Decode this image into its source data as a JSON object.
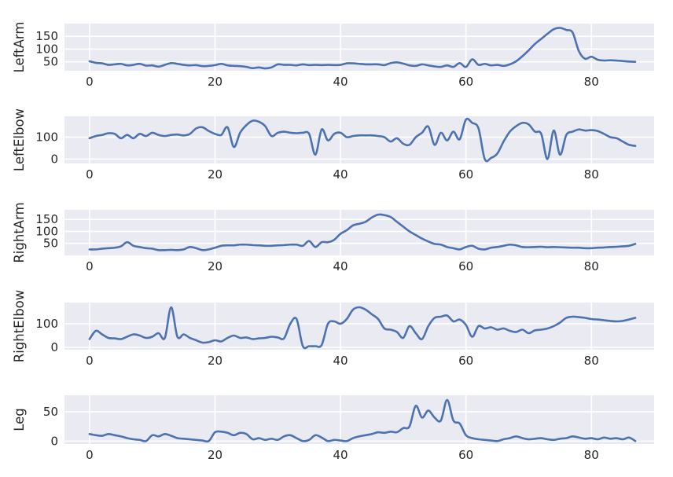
{
  "chart_data": [
    {
      "type": "line",
      "ylabel": "LeftArm",
      "xlim": [
        -4,
        90
      ],
      "ylim": [
        15,
        200
      ],
      "xticks": [
        0,
        20,
        40,
        60,
        80
      ],
      "yticks": [
        50,
        100,
        150
      ],
      "x": [
        0,
        1,
        2,
        3,
        4,
        5,
        6,
        7,
        8,
        9,
        10,
        11,
        12,
        13,
        14,
        15,
        16,
        17,
        18,
        19,
        20,
        21,
        22,
        23,
        24,
        25,
        26,
        27,
        28,
        29,
        30,
        31,
        32,
        33,
        34,
        35,
        36,
        37,
        38,
        39,
        40,
        41,
        42,
        43,
        44,
        45,
        46,
        47,
        48,
        49,
        50,
        51,
        52,
        53,
        54,
        55,
        56,
        57,
        58,
        59,
        60,
        61,
        62,
        63,
        64,
        65,
        66,
        67,
        68,
        69,
        70,
        71,
        72,
        73,
        74,
        75,
        76,
        77,
        78,
        79,
        80,
        81,
        82,
        83,
        84,
        85,
        86,
        87
      ],
      "y": [
        52,
        46,
        44,
        38,
        40,
        42,
        36,
        38,
        42,
        35,
        36,
        31,
        38,
        45,
        42,
        38,
        36,
        37,
        33,
        34,
        37,
        42,
        36,
        34,
        33,
        30,
        25,
        28,
        24,
        28,
        40,
        38,
        38,
        36,
        40,
        37,
        38,
        37,
        38,
        37,
        38,
        44,
        44,
        42,
        40,
        40,
        40,
        37,
        45,
        48,
        43,
        36,
        34,
        40,
        36,
        32,
        30,
        36,
        30,
        45,
        30,
        60,
        38,
        42,
        36,
        38,
        34,
        40,
        52,
        72,
        95,
        120,
        140,
        160,
        178,
        183,
        175,
        165,
        92,
        62,
        70,
        58,
        55,
        56,
        55,
        53,
        51,
        50
      ]
    },
    {
      "type": "line",
      "ylabel": "LeftElbow",
      "xlim": [
        -4,
        90
      ],
      "ylim": [
        -20,
        195
      ],
      "xticks": [
        0,
        20,
        40,
        60,
        80
      ],
      "yticks": [
        0,
        100
      ],
      "x": [
        0,
        1,
        2,
        3,
        4,
        5,
        6,
        7,
        8,
        9,
        10,
        11,
        12,
        13,
        14,
        15,
        16,
        17,
        18,
        19,
        20,
        21,
        22,
        23,
        24,
        25,
        26,
        27,
        28,
        29,
        30,
        31,
        32,
        33,
        34,
        35,
        36,
        37,
        38,
        39,
        40,
        41,
        42,
        43,
        44,
        45,
        46,
        47,
        48,
        49,
        50,
        51,
        52,
        53,
        54,
        55,
        56,
        57,
        58,
        59,
        60,
        61,
        62,
        63,
        64,
        65,
        66,
        67,
        68,
        69,
        70,
        71,
        72,
        73,
        74,
        75,
        76,
        77,
        78,
        79,
        80,
        81,
        82,
        83,
        84,
        85,
        86,
        87
      ],
      "y": [
        95,
        105,
        110,
        118,
        115,
        95,
        110,
        95,
        115,
        105,
        120,
        110,
        105,
        110,
        112,
        108,
        115,
        140,
        145,
        128,
        115,
        110,
        145,
        55,
        120,
        155,
        175,
        170,
        150,
        105,
        120,
        125,
        120,
        118,
        120,
        115,
        20,
        135,
        85,
        115,
        120,
        100,
        105,
        108,
        108,
        108,
        105,
        100,
        80,
        95,
        70,
        65,
        100,
        120,
        148,
        65,
        120,
        85,
        125,
        90,
        180,
        165,
        140,
        0,
        5,
        25,
        80,
        125,
        150,
        165,
        158,
        125,
        115,
        0,
        130,
        20,
        110,
        125,
        135,
        130,
        132,
        128,
        115,
        100,
        95,
        80,
        65,
        60
      ]
    },
    {
      "type": "line",
      "ylabel": "RightArm",
      "xlim": [
        -4,
        90
      ],
      "ylim": [
        0,
        190
      ],
      "xticks": [
        0,
        20,
        40,
        60,
        80
      ],
      "yticks": [
        50,
        100,
        150
      ],
      "x": [
        0,
        1,
        2,
        3,
        4,
        5,
        6,
        7,
        8,
        9,
        10,
        11,
        12,
        13,
        14,
        15,
        16,
        17,
        18,
        19,
        20,
        21,
        22,
        23,
        24,
        25,
        26,
        27,
        28,
        29,
        30,
        31,
        32,
        33,
        34,
        35,
        36,
        37,
        38,
        39,
        40,
        41,
        42,
        43,
        44,
        45,
        46,
        47,
        48,
        49,
        50,
        51,
        52,
        53,
        54,
        55,
        56,
        57,
        58,
        59,
        60,
        61,
        62,
        63,
        64,
        65,
        66,
        67,
        68,
        69,
        70,
        71,
        72,
        73,
        74,
        75,
        76,
        77,
        78,
        79,
        80,
        81,
        82,
        83,
        84,
        85,
        86,
        87
      ],
      "y": [
        25,
        25,
        28,
        30,
        32,
        38,
        55,
        40,
        35,
        30,
        28,
        22,
        22,
        23,
        22,
        25,
        35,
        30,
        22,
        25,
        32,
        40,
        42,
        42,
        45,
        45,
        43,
        42,
        40,
        40,
        42,
        43,
        45,
        45,
        40,
        60,
        35,
        55,
        55,
        65,
        90,
        105,
        125,
        132,
        140,
        158,
        170,
        168,
        160,
        140,
        120,
        100,
        85,
        70,
        58,
        48,
        45,
        35,
        30,
        25,
        35,
        40,
        28,
        25,
        32,
        35,
        40,
        45,
        42,
        35,
        34,
        35,
        36,
        34,
        35,
        34,
        33,
        32,
        32,
        30,
        30,
        32,
        33,
        35,
        36,
        38,
        40,
        48
      ]
    },
    {
      "type": "line",
      "ylabel": "RightElbow",
      "xlim": [
        -4,
        90
      ],
      "ylim": [
        -10,
        190
      ],
      "xticks": [
        0,
        20,
        40,
        60,
        80
      ],
      "yticks": [
        0,
        100
      ],
      "x": [
        0,
        1,
        2,
        3,
        4,
        5,
        6,
        7,
        8,
        9,
        10,
        11,
        12,
        13,
        14,
        15,
        16,
        17,
        18,
        19,
        20,
        21,
        22,
        23,
        24,
        25,
        26,
        27,
        28,
        29,
        30,
        31,
        32,
        33,
        34,
        35,
        36,
        37,
        38,
        39,
        40,
        41,
        42,
        43,
        44,
        45,
        46,
        47,
        48,
        49,
        50,
        51,
        52,
        53,
        54,
        55,
        56,
        57,
        58,
        59,
        60,
        61,
        62,
        63,
        64,
        65,
        66,
        67,
        68,
        69,
        70,
        71,
        72,
        73,
        74,
        75,
        76,
        77,
        78,
        79,
        80,
        81,
        82,
        83,
        84,
        85,
        86,
        87
      ],
      "y": [
        35,
        70,
        55,
        40,
        38,
        35,
        45,
        55,
        50,
        40,
        45,
        60,
        40,
        170,
        45,
        55,
        40,
        30,
        20,
        22,
        30,
        25,
        40,
        50,
        40,
        42,
        35,
        38,
        40,
        45,
        42,
        38,
        100,
        120,
        5,
        5,
        5,
        10,
        100,
        110,
        100,
        120,
        160,
        170,
        160,
        140,
        120,
        80,
        75,
        65,
        40,
        90,
        60,
        35,
        90,
        125,
        130,
        135,
        110,
        118,
        95,
        45,
        90,
        80,
        85,
        75,
        80,
        70,
        65,
        75,
        60,
        72,
        75,
        80,
        90,
        105,
        125,
        130,
        128,
        125,
        120,
        118,
        115,
        112,
        110,
        112,
        118,
        125
      ]
    },
    {
      "type": "line",
      "ylabel": "Leg",
      "xlim": [
        -4,
        90
      ],
      "ylim": [
        -5,
        78
      ],
      "xticks": [
        0,
        20,
        40,
        60,
        80
      ],
      "yticks": [
        0,
        50
      ],
      "x": [
        0,
        1,
        2,
        3,
        4,
        5,
        6,
        7,
        8,
        9,
        10,
        11,
        12,
        13,
        14,
        15,
        16,
        17,
        18,
        19,
        20,
        21,
        22,
        23,
        24,
        25,
        26,
        27,
        28,
        29,
        30,
        31,
        32,
        33,
        34,
        35,
        36,
        37,
        38,
        39,
        40,
        41,
        42,
        43,
        44,
        45,
        46,
        47,
        48,
        49,
        50,
        51,
        52,
        53,
        54,
        55,
        56,
        57,
        58,
        59,
        60,
        61,
        62,
        63,
        64,
        65,
        66,
        67,
        68,
        69,
        70,
        71,
        72,
        73,
        74,
        75,
        76,
        77,
        78,
        79,
        80,
        81,
        82,
        83,
        84,
        85,
        86,
        87
      ],
      "y": [
        12,
        10,
        9,
        12,
        10,
        8,
        5,
        3,
        2,
        0,
        10,
        8,
        12,
        9,
        5,
        4,
        3,
        2,
        1,
        0,
        15,
        16,
        14,
        10,
        14,
        12,
        3,
        5,
        2,
        4,
        2,
        8,
        10,
        5,
        0,
        2,
        10,
        6,
        0,
        2,
        1,
        0,
        5,
        8,
        10,
        12,
        15,
        14,
        16,
        15,
        22,
        25,
        60,
        40,
        52,
        40,
        35,
        70,
        35,
        30,
        10,
        5,
        3,
        2,
        1,
        0,
        3,
        5,
        8,
        5,
        3,
        4,
        5,
        3,
        2,
        4,
        5,
        8,
        6,
        4,
        5,
        3,
        6,
        4,
        5,
        3,
        6,
        0
      ]
    }
  ]
}
